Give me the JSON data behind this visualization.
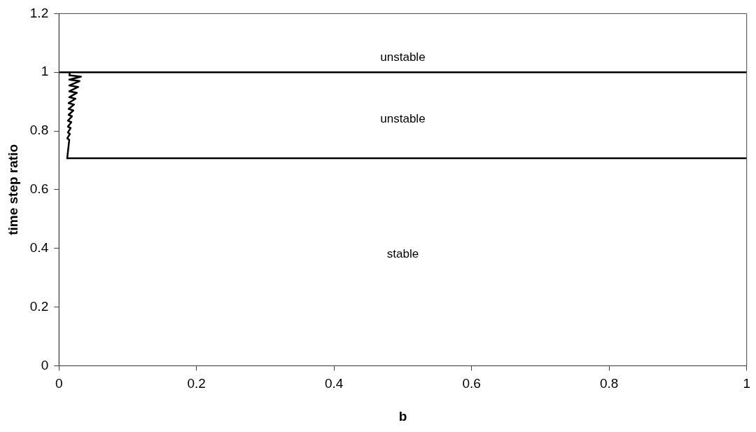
{
  "chart_data": {
    "type": "line",
    "xlabel": "b",
    "ylabel": "time step ratio",
    "xlim": [
      0,
      1
    ],
    "xticks": [
      0,
      0.2,
      0.4,
      0.6,
      0.8,
      1
    ],
    "ylim": [
      0,
      1.2
    ],
    "yticks": [
      0,
      0.2,
      0.4,
      0.6,
      0.8,
      1,
      1.2
    ],
    "grid": false,
    "legend": false,
    "marker": "none",
    "line_style": "solid",
    "series": [
      {
        "color": "#000000",
        "x": [
          0,
          1
        ],
        "values": [
          1,
          1
        ]
      },
      {
        "color": "#000000",
        "x": [
          0.012,
          1
        ],
        "values": [
          0.707,
          0.707
        ]
      },
      {
        "color": "#000000",
        "x": [
          0.012,
          0.015,
          0.012,
          0.016,
          0.013,
          0.017,
          0.013,
          0.018,
          0.013,
          0.019,
          0.014,
          0.021,
          0.014,
          0.022,
          0.014,
          0.024,
          0.015,
          0.026,
          0.015,
          0.028,
          0.015,
          0.03,
          0.015,
          0.032,
          0.015,
          0.016
        ],
        "values": [
          0.707,
          0.77,
          0.775,
          0.79,
          0.795,
          0.81,
          0.815,
          0.83,
          0.835,
          0.85,
          0.855,
          0.87,
          0.875,
          0.89,
          0.895,
          0.91,
          0.915,
          0.93,
          0.935,
          0.95,
          0.955,
          0.97,
          0.975,
          0.985,
          0.99,
          1
        ]
      }
    ],
    "annotations": [
      "unstable",
      "unstable",
      "stable"
    ]
  }
}
